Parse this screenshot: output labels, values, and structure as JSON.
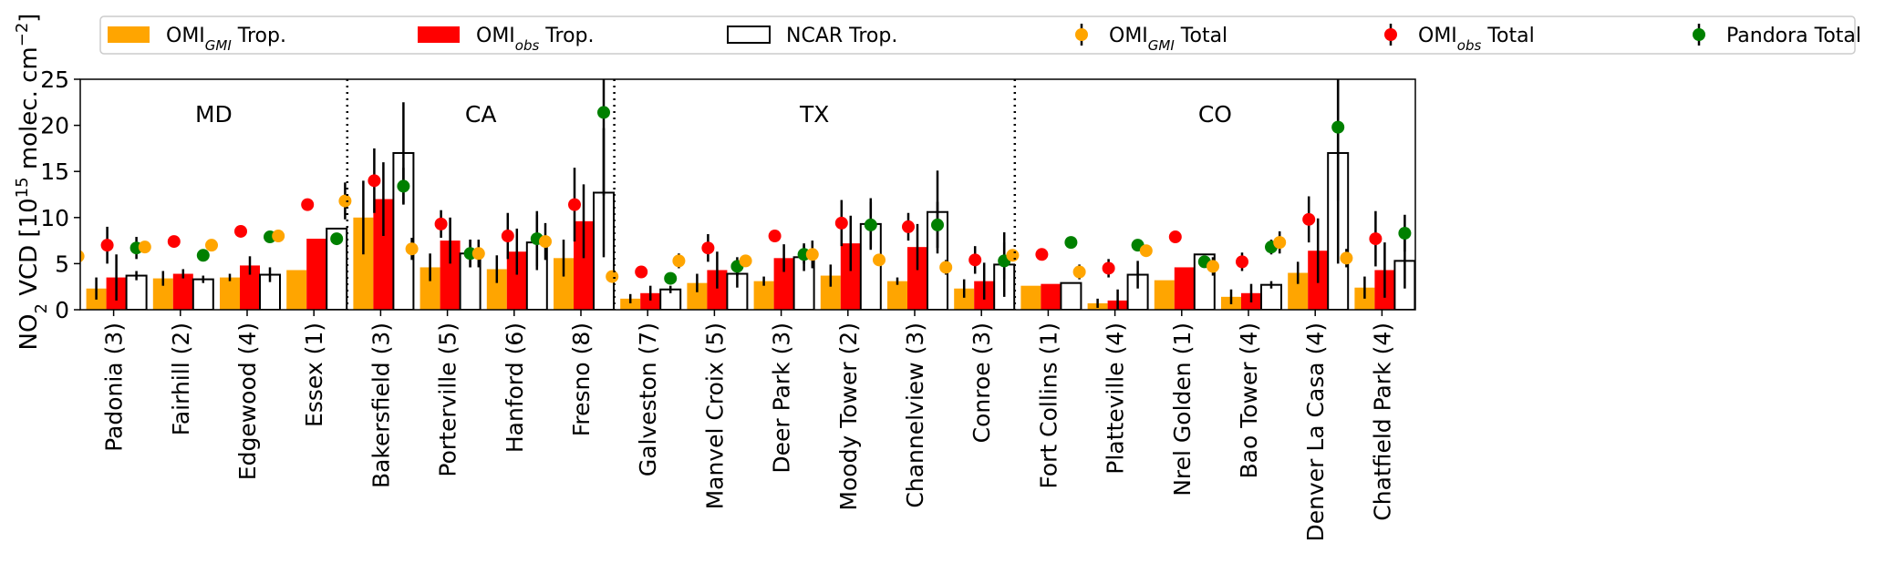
{
  "chart_data": {
    "type": "bar",
    "ylabel": "NO2 VCD [10^15 molec. cm^-2]",
    "ylabel_parts": {
      "base": "NO",
      "sub": "2",
      "mid": " VCD [10",
      "sup": "15",
      "tail": " molec. cm",
      "sup2": "−2",
      "end": "]"
    },
    "ylim": [
      0,
      25
    ],
    "yticks": [
      0,
      5,
      10,
      15,
      20,
      25
    ],
    "legend": [
      {
        "base": "OMI",
        "sub": "GMI",
        "tail": " Trop.",
        "kind": "bar",
        "color": "#ffa500"
      },
      {
        "base": "OMI",
        "sub": "obs",
        "tail": " Trop.",
        "kind": "bar",
        "color": "#ff0000"
      },
      {
        "base": "NCAR Trop.",
        "sub": "",
        "tail": "",
        "kind": "hollow",
        "color": "#000000"
      },
      {
        "base": "OMI",
        "sub": "GMI",
        "tail": " Total",
        "kind": "point",
        "color": "#ffa500"
      },
      {
        "base": "OMI",
        "sub": "obs",
        "tail": " Total",
        "kind": "point",
        "color": "#ff0000"
      },
      {
        "base": "Pandora Total",
        "sub": "",
        "tail": "",
        "kind": "point",
        "color": "#008000"
      }
    ],
    "regions": [
      {
        "name": "MD",
        "start": 0,
        "end": 3
      },
      {
        "name": "CA",
        "start": 4,
        "end": 7
      },
      {
        "name": "TX",
        "start": 8,
        "end": 13
      },
      {
        "name": "CO",
        "start": 14,
        "end": 19
      }
    ],
    "categories": [
      "Padonia (3)",
      "Fairhill (2)",
      "Edgewood (4)",
      "Essex (1)",
      "Bakersfield (3)",
      "Porterville (5)",
      "Hanford (6)",
      "Fresno (8)",
      "Galveston (7)",
      "Manvel Croix (5)",
      "Deer Park (3)",
      "Moody Tower (2)",
      "Channelview (3)",
      "Conroe (3)",
      "Fort Collins (1)",
      "Platteville (4)",
      "Nrel Golden (1)",
      "Bao Tower (4)",
      "Denver La Casa (4)",
      "Chatfield Park (4)"
    ],
    "series": [
      {
        "name": "OMI_GMI Trop.",
        "kind": "bar",
        "color": "#ffa500",
        "values": [
          2.3,
          3.4,
          3.5,
          4.3,
          10.0,
          4.6,
          4.4,
          5.6,
          1.2,
          2.9,
          3.1,
          3.7,
          3.1,
          2.3,
          2.6,
          0.7,
          3.2,
          1.4,
          4.0,
          2.4
        ],
        "errors": [
          1.2,
          0.8,
          0.4,
          0,
          4.0,
          1.5,
          1.5,
          2.0,
          0.5,
          1.0,
          0.5,
          1.2,
          0.4,
          1.0,
          0,
          0.5,
          0,
          0.8,
          1.2,
          1.2
        ]
      },
      {
        "name": "OMI_obs Trop.",
        "kind": "bar",
        "color": "#ff0000",
        "values": [
          3.5,
          3.9,
          4.8,
          7.7,
          12.0,
          7.5,
          6.3,
          9.6,
          1.8,
          4.3,
          5.6,
          7.2,
          6.8,
          3.1,
          2.8,
          1.0,
          4.6,
          1.8,
          6.4,
          4.3
        ],
        "errors": [
          2.5,
          0.5,
          1.0,
          0,
          4.0,
          2.5,
          2.5,
          4.0,
          0.8,
          2.0,
          1.5,
          3.0,
          2.5,
          2.0,
          0,
          1.2,
          0,
          1.0,
          3.5,
          3.0
        ]
      },
      {
        "name": "NCAR Trop.",
        "kind": "hollow",
        "color": "#000000",
        "values": [
          3.7,
          3.3,
          3.8,
          8.8,
          17.0,
          6.1,
          7.3,
          12.7,
          2.2,
          3.9,
          5.7,
          9.3,
          10.6,
          4.9,
          2.9,
          3.8,
          6.0,
          2.7,
          17.0,
          5.3
        ],
        "errors": [
          0.5,
          0.4,
          0.8,
          0,
          5.5,
          1.5,
          3.0,
          7.0,
          0.4,
          1.5,
          1.5,
          2.8,
          4.5,
          3.5,
          0,
          1.5,
          0,
          0.4,
          12.0,
          3.0
        ]
      },
      {
        "name": "OMI_GMI Total",
        "kind": "point",
        "color": "#ffa500",
        "values": [
          5.8,
          6.8,
          7.0,
          8.0,
          11.8,
          6.6,
          6.1,
          7.4,
          3.6,
          5.3,
          5.3,
          6.0,
          5.4,
          4.6,
          5.9,
          4.1,
          6.4,
          4.7,
          7.3,
          5.6
        ],
        "errors": [
          1.0,
          0,
          0,
          0,
          2.0,
          1.2,
          1.5,
          2.0,
          0,
          0.8,
          0.5,
          1.5,
          0.5,
          0.8,
          0,
          0.8,
          0,
          1.0,
          1.2,
          1.0
        ]
      },
      {
        "name": "OMI_obs Total",
        "kind": "point",
        "color": "#ff0000",
        "values": [
          7.0,
          7.4,
          8.5,
          11.4,
          14.0,
          9.3,
          8.0,
          11.4,
          4.1,
          6.7,
          8.0,
          9.4,
          9.0,
          5.4,
          6.0,
          4.5,
          7.9,
          5.2,
          9.8,
          7.7
        ],
        "errors": [
          2.0,
          0,
          0.6,
          0,
          3.5,
          1.5,
          2.5,
          4.0,
          0,
          1.5,
          0.6,
          2.5,
          1.5,
          1.5,
          0,
          1.0,
          0,
          1.0,
          2.5,
          3.0
        ]
      },
      {
        "name": "Pandora Total",
        "kind": "point",
        "color": "#008000",
        "values": [
          6.7,
          5.9,
          7.9,
          7.7,
          13.4,
          6.1,
          7.7,
          21.4,
          3.4,
          4.7,
          6.0,
          9.2,
          9.2,
          5.3,
          7.3,
          7.0,
          5.2,
          6.8,
          19.8,
          8.3
        ],
        "errors": [
          1.2,
          0,
          0,
          0,
          2.0,
          1.5,
          3.0,
          9.0,
          0,
          1.0,
          1.0,
          2.5,
          2.5,
          2.0,
          0,
          0.4,
          0,
          0.8,
          8.0,
          2.0
        ]
      }
    ]
  }
}
